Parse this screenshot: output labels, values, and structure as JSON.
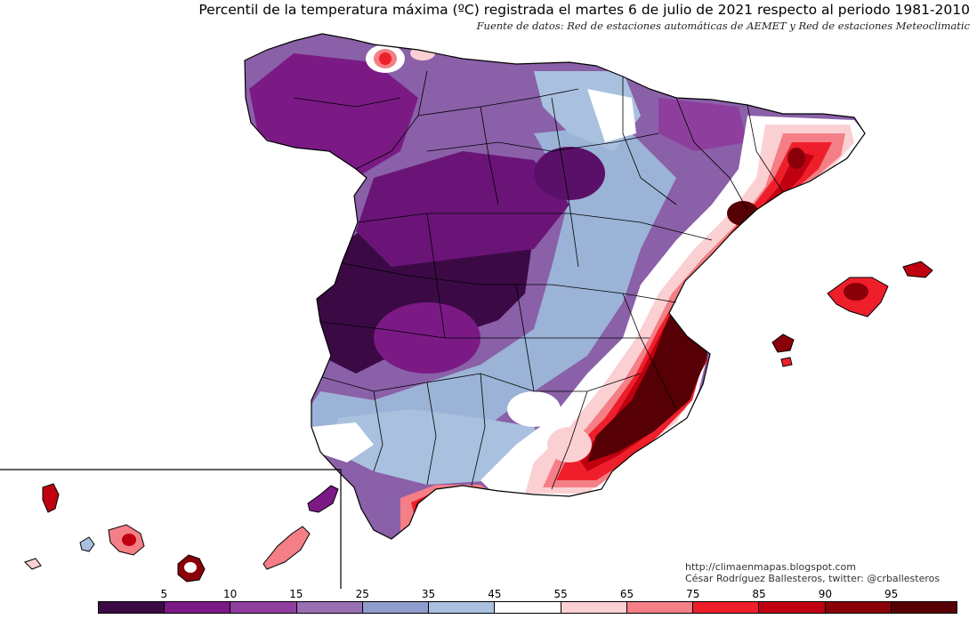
{
  "header": {
    "title": "Percentil de la temperatura máxima (ºC) registrada el martes 6 de julio de 2021 respecto al periodo 1981-2010",
    "source": "Fuente de datos: Red de estaciones automáticas de AEMET y Red de estaciones Meteoclimatic"
  },
  "credits": {
    "url": "http://climaenmapas.blogspot.com",
    "author": "César Rodríguez Ballesteros, twitter: @crballesteros"
  },
  "legend": {
    "labels": [
      "5",
      "10",
      "15",
      "25",
      "35",
      "45",
      "55",
      "65",
      "75",
      "85",
      "90",
      "95"
    ],
    "colors": [
      "#3b0a45",
      "#7b1a85",
      "#8e3f9e",
      "#9a70b4",
      "#8f9ccc",
      "#a9c1df",
      "#ffffff",
      "#fbd0d3",
      "#f47f86",
      "#ee1f2b",
      "#c00010",
      "#8a0009",
      "#560005"
    ]
  },
  "map": {
    "regions": [
      "Península Ibérica",
      "Islas Baleares",
      "Islas Canarias"
    ]
  }
}
